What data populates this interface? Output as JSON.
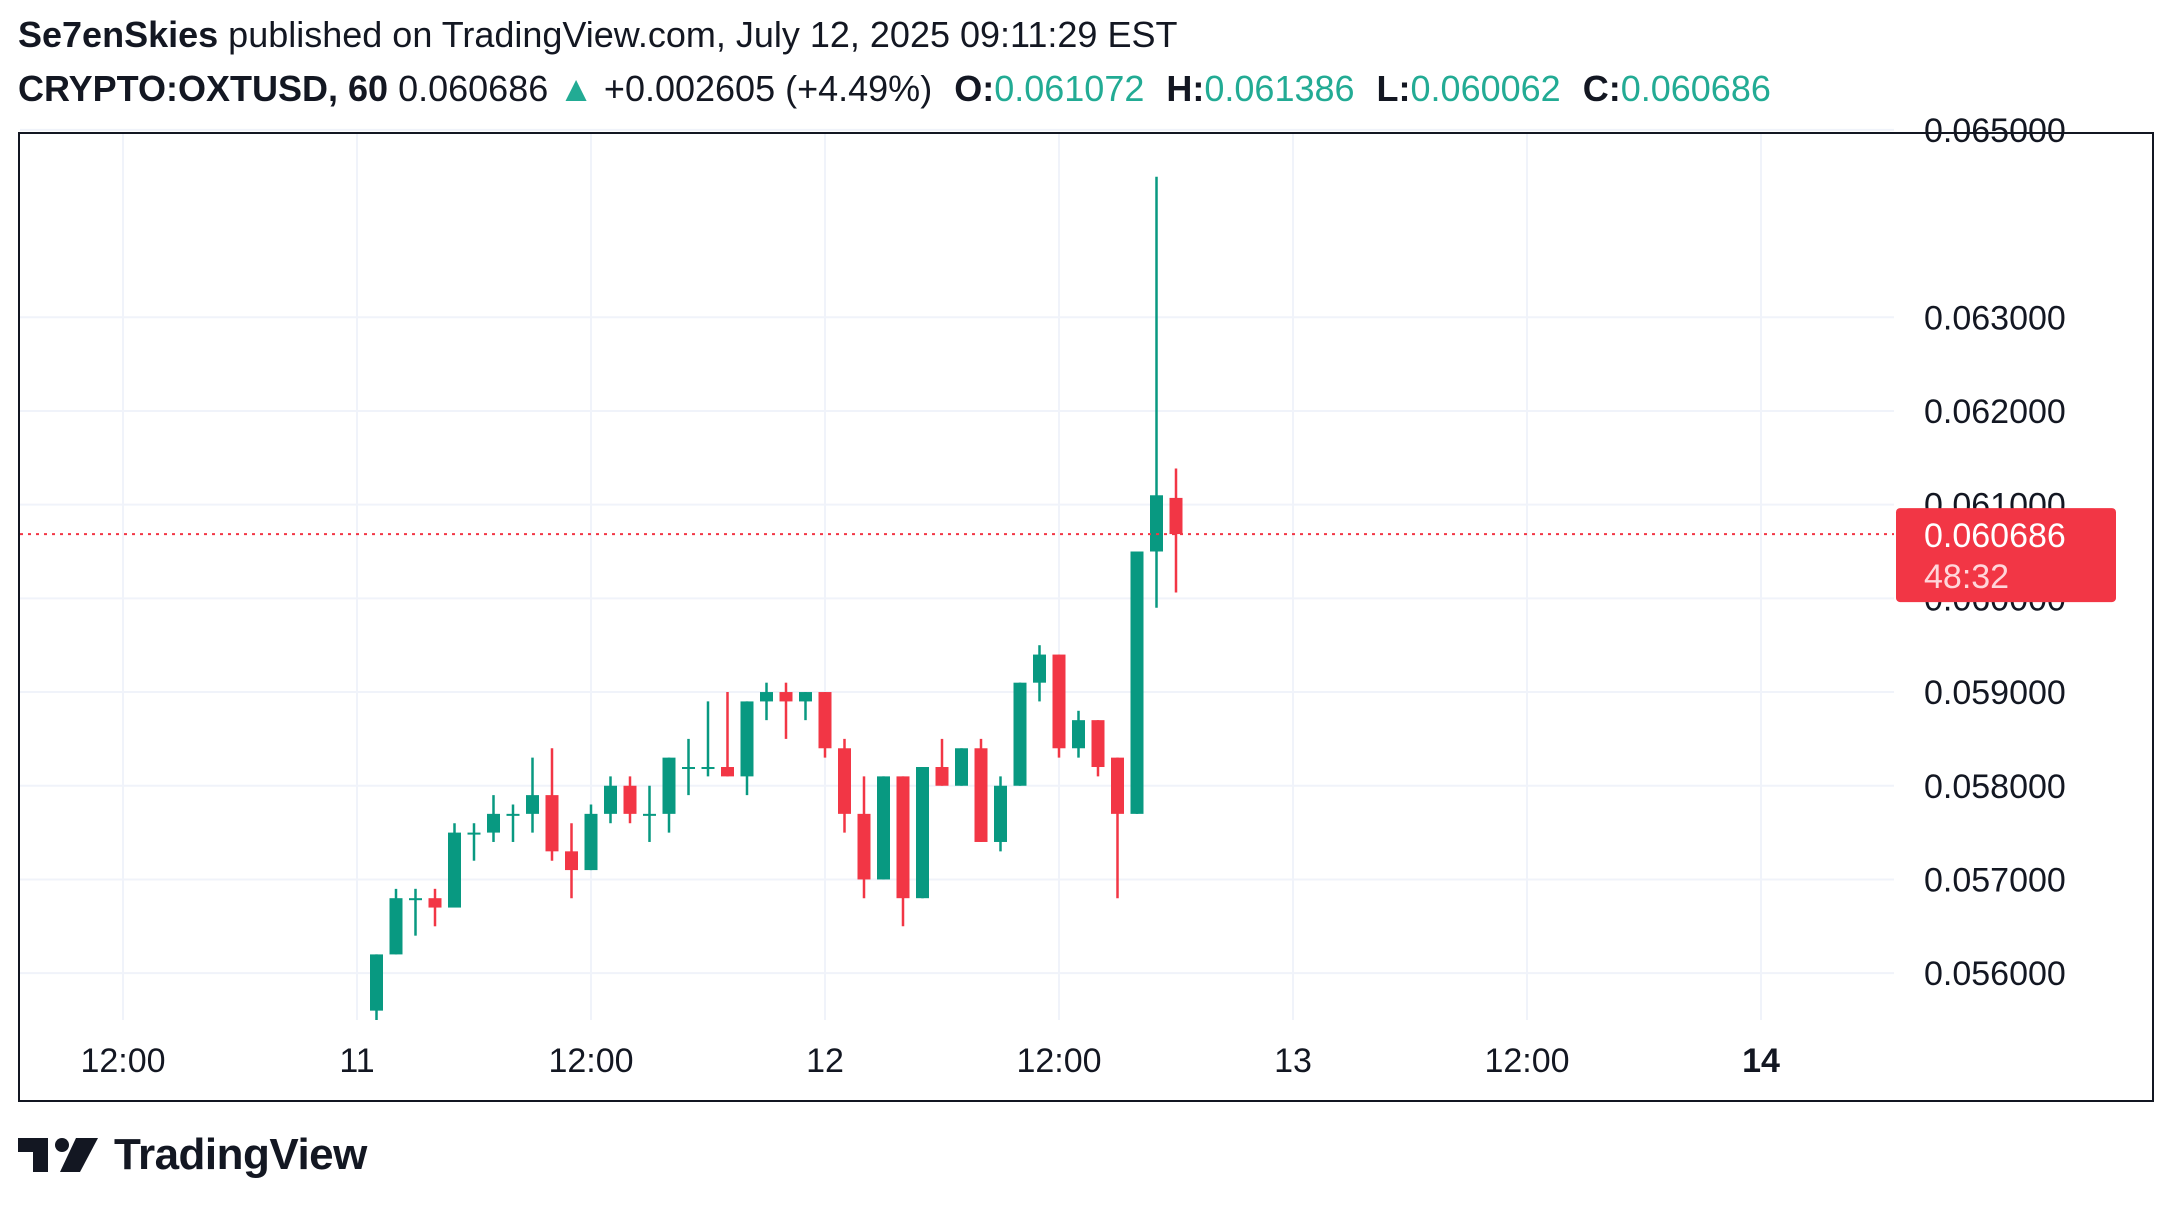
{
  "header": {
    "author": "Se7enSkies",
    "published_text": "published on TradingView.com, July 12, 2025 09:11:29 EST",
    "symbol": "CRYPTO:OXTUSD, 60",
    "last": "0.060686",
    "arrow": "▲",
    "change": "+0.002605 (+4.49%)",
    "open_label": "O:",
    "open": "0.061072",
    "high_label": "H:",
    "high": "0.061386",
    "low_label": "L:",
    "low": "0.060062",
    "close_label": "C:",
    "close": "0.060686"
  },
  "price_tag": {
    "price": "0.060686",
    "countdown": "48:32"
  },
  "colors": {
    "up": "#089981",
    "down": "#f23645",
    "grid": "#f0f3fa",
    "tag": "#f23645"
  },
  "footer": {
    "logo_icon": "tradingview-logo-icon",
    "brand": "TradingView"
  },
  "chart_data": {
    "type": "candlestick",
    "symbol": "CRYPTO:OXTUSD",
    "interval": "60",
    "ylim": [
      0.0555,
      0.0651
    ],
    "y_ticks": [
      "0.056000",
      "0.057000",
      "0.058000",
      "0.059000",
      "0.060000",
      "0.061000",
      "0.062000",
      "0.063000",
      "0.065000"
    ],
    "x_ticks": [
      {
        "label": "12:00",
        "t": -12,
        "bold": false
      },
      {
        "label": "11",
        "t": 0,
        "bold": false
      },
      {
        "label": "12:00",
        "t": 12,
        "bold": false
      },
      {
        "label": "12",
        "t": 24,
        "bold": false
      },
      {
        "label": "12:00",
        "t": 36,
        "bold": false
      },
      {
        "label": "13",
        "t": 48,
        "bold": false
      },
      {
        "label": "12:00",
        "t": 60,
        "bold": false
      },
      {
        "label": "14",
        "t": 72,
        "bold": true
      }
    ],
    "last_price": 0.060686,
    "candles": [
      {
        "t": 1,
        "o": 0.0556,
        "h": 0.0562,
        "l": 0.0555,
        "c": 0.0562
      },
      {
        "t": 2,
        "o": 0.0562,
        "h": 0.0569,
        "l": 0.0562,
        "c": 0.0568
      },
      {
        "t": 3,
        "o": 0.0568,
        "h": 0.0569,
        "l": 0.0564,
        "c": 0.0568
      },
      {
        "t": 4,
        "o": 0.0568,
        "h": 0.0569,
        "l": 0.0565,
        "c": 0.0567
      },
      {
        "t": 5,
        "o": 0.0567,
        "h": 0.0576,
        "l": 0.0567,
        "c": 0.0575
      },
      {
        "t": 6,
        "o": 0.0575,
        "h": 0.0576,
        "l": 0.0572,
        "c": 0.0575
      },
      {
        "t": 7,
        "o": 0.0575,
        "h": 0.0579,
        "l": 0.0574,
        "c": 0.0577
      },
      {
        "t": 8,
        "o": 0.0577,
        "h": 0.0578,
        "l": 0.0574,
        "c": 0.0577
      },
      {
        "t": 9,
        "o": 0.0577,
        "h": 0.0583,
        "l": 0.0575,
        "c": 0.0579
      },
      {
        "t": 10,
        "o": 0.0579,
        "h": 0.0584,
        "l": 0.0572,
        "c": 0.0573
      },
      {
        "t": 11,
        "o": 0.0573,
        "h": 0.0576,
        "l": 0.0568,
        "c": 0.0571
      },
      {
        "t": 12,
        "o": 0.0571,
        "h": 0.0578,
        "l": 0.0571,
        "c": 0.0577
      },
      {
        "t": 13,
        "o": 0.0577,
        "h": 0.0581,
        "l": 0.0576,
        "c": 0.058
      },
      {
        "t": 14,
        "o": 0.058,
        "h": 0.0581,
        "l": 0.0576,
        "c": 0.0577
      },
      {
        "t": 15,
        "o": 0.0577,
        "h": 0.058,
        "l": 0.0574,
        "c": 0.0577
      },
      {
        "t": 16,
        "o": 0.0577,
        "h": 0.0583,
        "l": 0.0575,
        "c": 0.0583
      },
      {
        "t": 17,
        "o": 0.0582,
        "h": 0.0585,
        "l": 0.0579,
        "c": 0.0582
      },
      {
        "t": 18,
        "o": 0.0582,
        "h": 0.0589,
        "l": 0.0581,
        "c": 0.0582
      },
      {
        "t": 19,
        "o": 0.0582,
        "h": 0.059,
        "l": 0.0581,
        "c": 0.0581
      },
      {
        "t": 20,
        "o": 0.0581,
        "h": 0.0589,
        "l": 0.0579,
        "c": 0.0589
      },
      {
        "t": 21,
        "o": 0.0589,
        "h": 0.0591,
        "l": 0.0587,
        "c": 0.059
      },
      {
        "t": 22,
        "o": 0.059,
        "h": 0.0591,
        "l": 0.0585,
        "c": 0.0589
      },
      {
        "t": 23,
        "o": 0.0589,
        "h": 0.059,
        "l": 0.0587,
        "c": 0.059
      },
      {
        "t": 24,
        "o": 0.059,
        "h": 0.059,
        "l": 0.0583,
        "c": 0.0584
      },
      {
        "t": 25,
        "o": 0.0584,
        "h": 0.0585,
        "l": 0.0575,
        "c": 0.0577
      },
      {
        "t": 26,
        "o": 0.0577,
        "h": 0.0581,
        "l": 0.0568,
        "c": 0.057
      },
      {
        "t": 27,
        "o": 0.057,
        "h": 0.0581,
        "l": 0.057,
        "c": 0.0581
      },
      {
        "t": 28,
        "o": 0.0581,
        "h": 0.0581,
        "l": 0.0565,
        "c": 0.0568
      },
      {
        "t": 29,
        "o": 0.0568,
        "h": 0.0582,
        "l": 0.0568,
        "c": 0.0582
      },
      {
        "t": 30,
        "o": 0.0582,
        "h": 0.0585,
        "l": 0.058,
        "c": 0.058
      },
      {
        "t": 31,
        "o": 0.058,
        "h": 0.0584,
        "l": 0.058,
        "c": 0.0584
      },
      {
        "t": 32,
        "o": 0.0584,
        "h": 0.0585,
        "l": 0.0574,
        "c": 0.0574
      },
      {
        "t": 33,
        "o": 0.0574,
        "h": 0.0581,
        "l": 0.0573,
        "c": 0.058
      },
      {
        "t": 34,
        "o": 0.058,
        "h": 0.0591,
        "l": 0.058,
        "c": 0.0591
      },
      {
        "t": 35,
        "o": 0.0591,
        "h": 0.0595,
        "l": 0.0589,
        "c": 0.0594
      },
      {
        "t": 36,
        "o": 0.0594,
        "h": 0.0594,
        "l": 0.0583,
        "c": 0.0584
      },
      {
        "t": 37,
        "o": 0.0584,
        "h": 0.0588,
        "l": 0.0583,
        "c": 0.0587
      },
      {
        "t": 38,
        "o": 0.0587,
        "h": 0.0587,
        "l": 0.0581,
        "c": 0.0582
      },
      {
        "t": 39,
        "o": 0.0583,
        "h": 0.0583,
        "l": 0.0568,
        "c": 0.0577
      },
      {
        "t": 40,
        "o": 0.0577,
        "h": 0.0605,
        "l": 0.0577,
        "c": 0.0605
      },
      {
        "t": 41,
        "o": 0.0605,
        "h": 0.0645,
        "l": 0.0599,
        "c": 0.0611
      },
      {
        "t": 42,
        "o": 0.061072,
        "h": 0.061386,
        "l": 0.060062,
        "c": 0.060686
      }
    ]
  }
}
